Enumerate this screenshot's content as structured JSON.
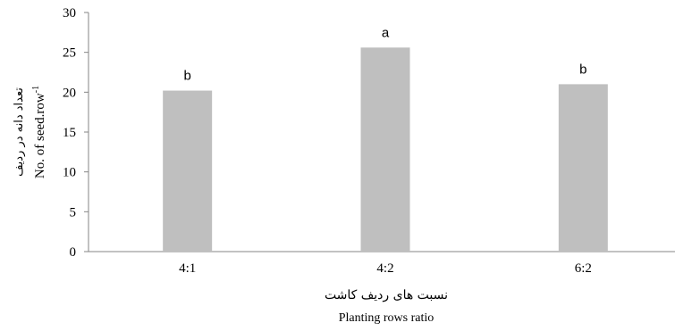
{
  "chart_data": {
    "type": "bar",
    "categories": [
      "4:1",
      "4:2",
      "6:2"
    ],
    "values": [
      20.2,
      25.6,
      21.0
    ],
    "significance_letters": [
      "b",
      "a",
      "b"
    ],
    "ylim": [
      0,
      30
    ],
    "yticks": [
      "0",
      "5",
      "10",
      "15",
      "20",
      "25",
      "30"
    ],
    "xlabel_fa": "نسبت های ردیف کاشت",
    "xlabel": "Planting  rows ratio",
    "ylabel_fa": "تعداد دانه در ردیف",
    "ylabel": "No. of seed.row",
    "ylabel_superscript": "-1",
    "bar_color": "#bfbfbf",
    "grid": false,
    "legend": "none"
  }
}
